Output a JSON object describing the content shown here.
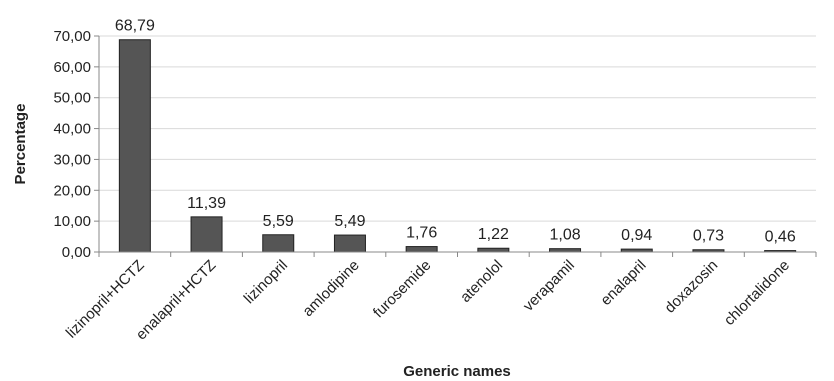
{
  "chart_data": {
    "type": "bar",
    "title": "",
    "xlabel": "Generic names",
    "ylabel": "Percentage",
    "categories": [
      "lizinopril+HCTZ",
      "enalapril+HCTZ",
      "lizinopril",
      "amlodipine",
      "furosemide",
      "atenolol",
      "verapamil",
      "enalapril",
      "doxazosin",
      "chlortalidone"
    ],
    "values": [
      68.79,
      11.39,
      5.59,
      5.49,
      1.76,
      1.22,
      1.08,
      0.94,
      0.73,
      0.46
    ],
    "data_labels": [
      "68,79",
      "11,39",
      "5,59",
      "5,49",
      "1,76",
      "1,22",
      "1,08",
      "0,94",
      "0,73",
      "0,46"
    ],
    "ylim": [
      0,
      70
    ],
    "yticks": [
      0,
      10,
      20,
      30,
      40,
      50,
      60,
      70
    ],
    "ytick_labels": [
      "0,00",
      "10,00",
      "20,00",
      "30,00",
      "40,00",
      "50,00",
      "60,00",
      "70,00"
    ],
    "grid": true,
    "legend": "none",
    "colors": {
      "bar": "#555555",
      "bar_edge": "#222222",
      "grid": "#d9d9d9",
      "axis": "#888888"
    }
  }
}
